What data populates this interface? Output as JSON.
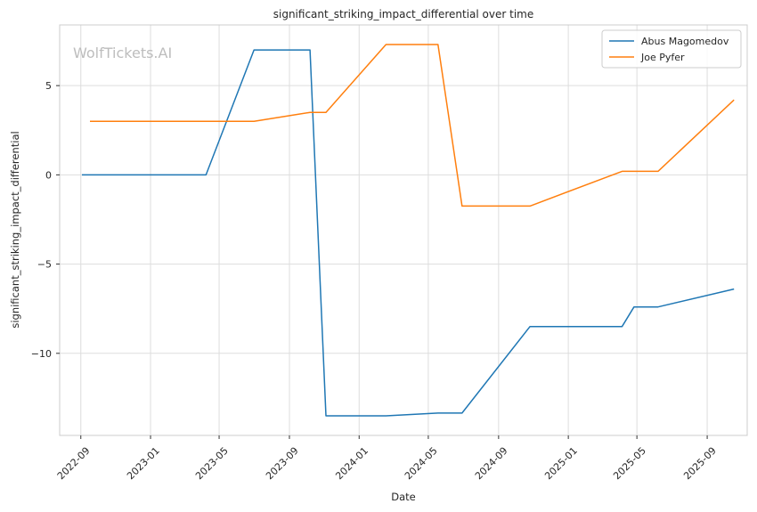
{
  "chart_data": {
    "type": "line",
    "title": "significant_striking_impact_differential over time",
    "xlabel": "Date",
    "ylabel": "significant_striking_impact_differential",
    "watermark": "WolfTickets.AI",
    "grid": true,
    "legend_position": "top-right",
    "xlim": [
      "2022-07-26",
      "2025-11-10"
    ],
    "ylim": [
      -14.6,
      8.4
    ],
    "x_ticks": [
      "2022-09",
      "2023-01",
      "2023-05",
      "2023-09",
      "2024-01",
      "2024-05",
      "2024-09",
      "2025-01",
      "2025-05",
      "2025-09"
    ],
    "y_ticks": [
      5,
      0,
      -5,
      -10
    ],
    "y_tick_labels": [
      "5",
      "0",
      "−5",
      "−10"
    ],
    "series": [
      {
        "name": "Abus Magomedov",
        "color": "#1f77b4",
        "points": [
          {
            "x": "2022-09-03",
            "y": 0
          },
          {
            "x": "2023-04-08",
            "y": 0
          },
          {
            "x": "2023-07-01",
            "y": 7.0
          },
          {
            "x": "2023-10-07",
            "y": 7.0
          },
          {
            "x": "2023-11-04",
            "y": -13.5
          },
          {
            "x": "2024-02-17",
            "y": -13.5
          },
          {
            "x": "2024-05-18",
            "y": -13.35
          },
          {
            "x": "2024-06-29",
            "y": -13.35
          },
          {
            "x": "2024-10-26",
            "y": -8.5
          },
          {
            "x": "2025-04-05",
            "y": -8.5
          },
          {
            "x": "2025-04-26",
            "y": -7.4
          },
          {
            "x": "2025-06-07",
            "y": -7.4
          },
          {
            "x": "2025-10-18",
            "y": -6.4
          }
        ]
      },
      {
        "name": "Joe Pyfer",
        "color": "#ff7f0e",
        "points": [
          {
            "x": "2022-09-17",
            "y": 3.0
          },
          {
            "x": "2023-07-01",
            "y": 3.0
          },
          {
            "x": "2023-10-07",
            "y": 3.5
          },
          {
            "x": "2023-11-04",
            "y": 3.5
          },
          {
            "x": "2024-02-17",
            "y": 7.3
          },
          {
            "x": "2024-05-18",
            "y": 7.3
          },
          {
            "x": "2024-06-29",
            "y": -1.75
          },
          {
            "x": "2024-10-26",
            "y": -1.75
          },
          {
            "x": "2025-04-05",
            "y": 0.2
          },
          {
            "x": "2025-06-07",
            "y": 0.2
          },
          {
            "x": "2025-10-18",
            "y": 4.2
          }
        ]
      }
    ]
  }
}
